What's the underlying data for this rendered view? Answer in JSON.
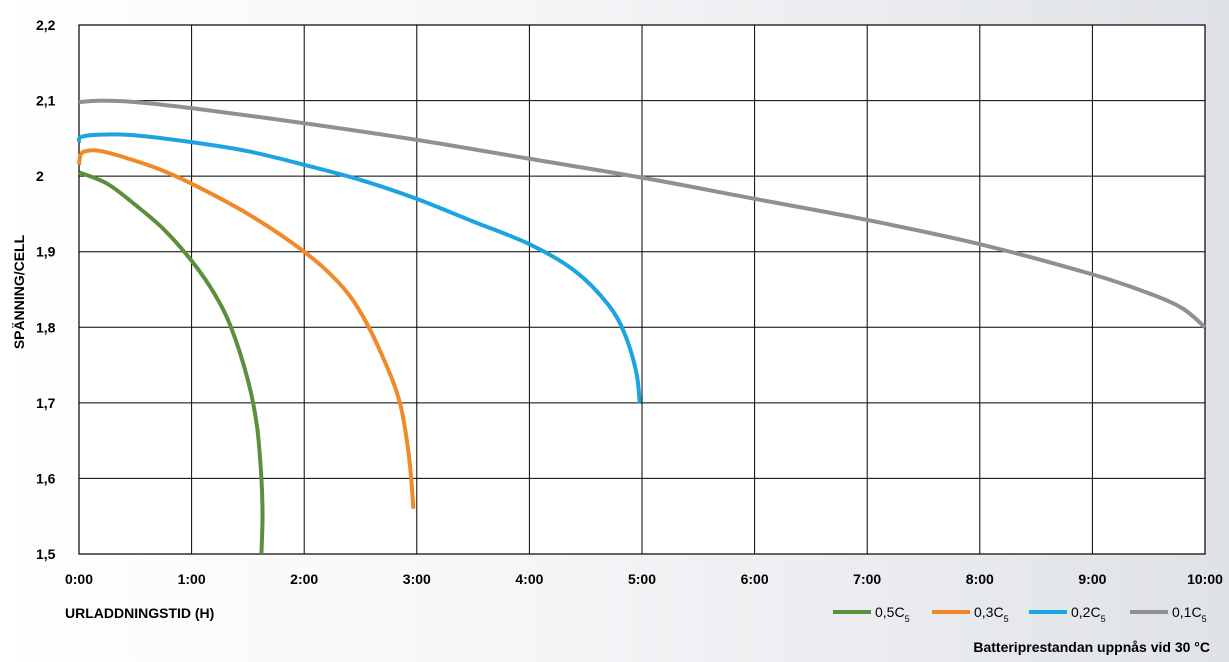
{
  "chart_data": {
    "type": "line",
    "xlabel": "URLADDNINGSTID (H)",
    "ylabel": "SPÄNNING/CELL",
    "note": "Batteriprestandan uppnås vid 30 °C",
    "xlim": [
      0,
      10
    ],
    "ylim": [
      1.5,
      2.2
    ],
    "x_ticks": [
      "0:00",
      "1:00",
      "2:00",
      "3:00",
      "4:00",
      "5:00",
      "6:00",
      "7:00",
      "8:00",
      "9:00",
      "10:00"
    ],
    "y_ticks": [
      "1,5",
      "1,6",
      "1,7",
      "1,8",
      "1,9",
      "2",
      "2,1",
      "2,2"
    ],
    "grid": true,
    "legend_position": "bottom-right",
    "series": [
      {
        "name": "0,5C",
        "name_sub": "5",
        "color": "#5b8f3b",
        "x": [
          0,
          0.25,
          0.5,
          0.75,
          1.0,
          1.2,
          1.35,
          1.5,
          1.58,
          1.62,
          1.63,
          1.62
        ],
        "y": [
          2.005,
          1.99,
          1.962,
          1.93,
          1.888,
          1.845,
          1.8,
          1.73,
          1.67,
          1.6,
          1.55,
          1.5
        ]
      },
      {
        "name": "0,3C",
        "name_sub": "5",
        "color": "#f0892a",
        "x": [
          0,
          0.02,
          0.1,
          0.2,
          0.4,
          0.7,
          1.0,
          1.5,
          2.0,
          2.3,
          2.5,
          2.7,
          2.85,
          2.93,
          2.97
        ],
        "y": [
          2.015,
          2.03,
          2.034,
          2.033,
          2.025,
          2.01,
          1.99,
          1.95,
          1.9,
          1.86,
          1.82,
          1.76,
          1.7,
          1.63,
          1.56
        ]
      },
      {
        "name": "0,2C",
        "name_sub": "5",
        "color": "#1ba4e0",
        "x": [
          0,
          0.02,
          0.2,
          0.5,
          1.0,
          1.5,
          2.0,
          2.5,
          3.0,
          3.5,
          4.0,
          4.4,
          4.7,
          4.85,
          4.95,
          4.98
        ],
        "y": [
          2.045,
          2.052,
          2.055,
          2.054,
          2.045,
          2.033,
          2.015,
          1.995,
          1.97,
          1.94,
          1.91,
          1.875,
          1.83,
          1.79,
          1.74,
          1.7
        ]
      },
      {
        "name": "0,1C",
        "name_sub": "5",
        "color": "#8f9093",
        "x": [
          0,
          0.2,
          0.5,
          1.0,
          2.0,
          3.0,
          4.0,
          5.0,
          6.0,
          7.0,
          8.0,
          9.0,
          9.5,
          9.8,
          10.0
        ],
        "y": [
          2.098,
          2.1,
          2.098,
          2.09,
          2.07,
          2.048,
          2.023,
          1.998,
          1.97,
          1.942,
          1.91,
          1.87,
          1.845,
          1.825,
          1.8
        ]
      }
    ]
  }
}
